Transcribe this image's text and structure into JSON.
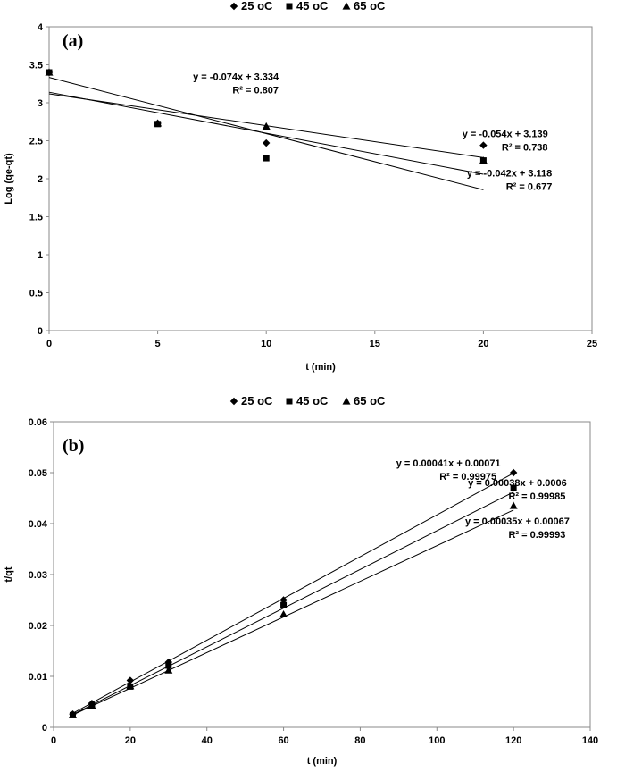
{
  "chart_data": [
    {
      "type": "scatter",
      "panel_label": "(a)",
      "xlabel": "t (min)",
      "ylabel": "Log (qe-qt)",
      "xlim": [
        0,
        25
      ],
      "ylim": [
        0,
        4
      ],
      "xticks": [
        "0",
        "5",
        "10",
        "15",
        "20",
        "25"
      ],
      "yticks": [
        "0",
        "0.5",
        "1",
        "1.5",
        "2",
        "2.5",
        "3",
        "3.5",
        "4"
      ],
      "grid": false,
      "legend": {
        "position": "top",
        "entries": [
          "25 oC",
          "45 oC",
          "65 oC"
        ]
      },
      "series": [
        {
          "name": "25 oC",
          "marker": "diamond",
          "x": [
            0,
            5,
            10,
            20
          ],
          "y": [
            3.4,
            2.73,
            2.47,
            2.44
          ],
          "trendline": {
            "slope": -0.054,
            "intercept": 3.139,
            "x": [
              0,
              20
            ]
          }
        },
        {
          "name": "45 oC",
          "marker": "square",
          "x": [
            0,
            5,
            10,
            20
          ],
          "y": [
            3.4,
            2.72,
            2.27,
            2.24
          ],
          "trendline": {
            "slope": -0.074,
            "intercept": 3.334,
            "x": [
              0,
              20
            ]
          }
        },
        {
          "name": "65 oC",
          "marker": "triangle",
          "x": [
            0,
            5,
            10,
            20
          ],
          "y": [
            3.4,
            2.73,
            2.69,
            2.24
          ],
          "trendline": {
            "slope": -0.042,
            "intercept": 3.118,
            "x": [
              0,
              20
            ]
          }
        }
      ],
      "annotations": [
        {
          "line1": "y = -0.074x + 3.334",
          "line2": "R² = 0.807",
          "anchor_x": 8.6,
          "anchor_y": 3.3
        },
        {
          "line1": "y = -0.054x + 3.139",
          "line2": "R² = 0.738",
          "anchor_x": 21.0,
          "anchor_y": 2.55
        },
        {
          "line1": "y = -0.042x + 3.118",
          "line2": "R² = 0.677",
          "anchor_x": 21.2,
          "anchor_y": 2.03
        }
      ]
    },
    {
      "type": "scatter",
      "panel_label": "(b)",
      "xlabel": "t (min)",
      "ylabel": "t/qt",
      "xlim": [
        0,
        140
      ],
      "ylim": [
        0,
        0.06
      ],
      "xticks": [
        "0",
        "20",
        "40",
        "60",
        "80",
        "100",
        "120",
        "140"
      ],
      "yticks": [
        "0",
        "0.01",
        "0.02",
        "0.03",
        "0.04",
        "0.05",
        "0.06"
      ],
      "grid": false,
      "legend": {
        "position": "top",
        "entries": [
          "25 oC",
          "45 oC",
          "65 oC"
        ]
      },
      "series": [
        {
          "name": "25 oC",
          "marker": "diamond",
          "x": [
            5,
            10,
            20,
            30,
            60,
            120
          ],
          "y": [
            0.0026,
            0.0047,
            0.0092,
            0.0128,
            0.025,
            0.05
          ],
          "trendline": {
            "slope": 0.00041,
            "intercept": 0.00071,
            "x": [
              5,
              120
            ]
          }
        },
        {
          "name": "45 oC",
          "marker": "square",
          "x": [
            5,
            10,
            20,
            30,
            60,
            120
          ],
          "y": [
            0.0024,
            0.0043,
            0.008,
            0.0121,
            0.024,
            0.047
          ],
          "trendline": {
            "slope": 0.00038,
            "intercept": 0.0006,
            "x": [
              5,
              120
            ]
          }
        },
        {
          "name": "65 oC",
          "marker": "triangle",
          "x": [
            5,
            10,
            20,
            30,
            60,
            120
          ],
          "y": [
            0.0024,
            0.0043,
            0.0081,
            0.0112,
            0.0222,
            0.0435
          ],
          "trendline": {
            "slope": 0.00035,
            "intercept": 0.00067,
            "x": [
              5,
              120
            ]
          }
        }
      ],
      "annotations": [
        {
          "line1": "y = 0.00041x + 0.00071",
          "line2": "R² = 0.99975",
          "anchor_x": 103,
          "anchor_y": 0.0512
        },
        {
          "line1": "y = 0.00038x + 0.0006",
          "line2": "R² = 0.99985",
          "anchor_x": 121,
          "anchor_y": 0.0474
        },
        {
          "line1": "y = 0.00035x + 0.00067",
          "line2": "R² = 0.99993",
          "anchor_x": 121,
          "anchor_y": 0.0398
        }
      ]
    }
  ]
}
